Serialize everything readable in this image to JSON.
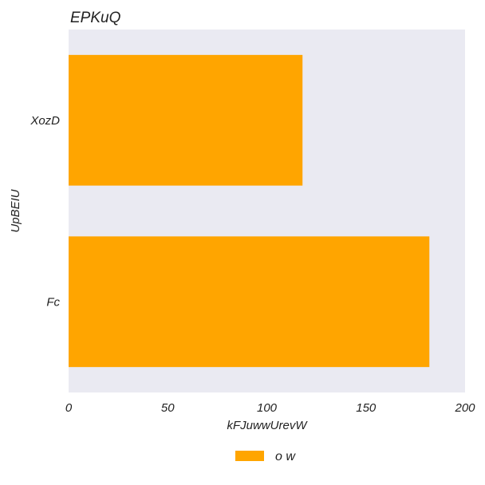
{
  "chart_data": {
    "type": "bar",
    "orientation": "horizontal",
    "title": "EPKuQ",
    "xlabel": "kFJuwwUrevW",
    "ylabel": "UpBEIU",
    "categories": [
      "XozD",
      "Fc"
    ],
    "series": [
      {
        "name": "o w",
        "values": [
          118,
          182
        ],
        "color": "#FFA500"
      }
    ],
    "xlim": [
      0,
      200
    ],
    "xticks": [
      0,
      50,
      100,
      150,
      200
    ],
    "grid": false,
    "legend": "bottom-center",
    "plot_background": "#EAEAF2"
  }
}
